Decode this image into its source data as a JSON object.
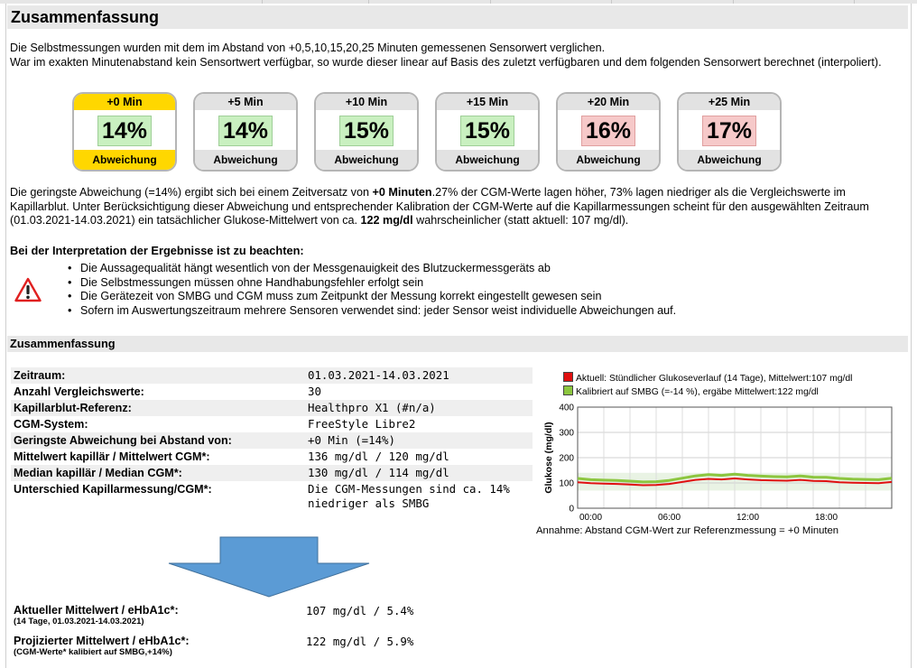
{
  "title": "Zusammenfassung",
  "intro": {
    "line1": "Die Selbstmessungen wurden mit dem im Abstand von +0,5,10,15,20,25 Minuten gemessenen Sensorwert verglichen.",
    "line2": "War im exakten Minutenabstand kein Sensortwert verfügbar, so wurde dieser linear auf Basis des zuletzt verfügbaren und dem folgenden Sensorwert berechnet (interpoliert)."
  },
  "cards": [
    {
      "label": "+0 Min",
      "value": "14%",
      "footer": "Abweichung",
      "selected": true,
      "status": "green"
    },
    {
      "label": "+5 Min",
      "value": "14%",
      "footer": "Abweichung",
      "selected": false,
      "status": "green"
    },
    {
      "label": "+10 Min",
      "value": "15%",
      "footer": "Abweichung",
      "selected": false,
      "status": "green"
    },
    {
      "label": "+15 Min",
      "value": "15%",
      "footer": "Abweichung",
      "selected": false,
      "status": "green"
    },
    {
      "label": "+20 Min",
      "value": "16%",
      "footer": "Abweichung",
      "selected": false,
      "status": "red"
    },
    {
      "label": "+25 Min",
      "value": "17%",
      "footer": "Abweichung",
      "selected": false,
      "status": "red"
    }
  ],
  "result": {
    "part1": "Die geringste Abweichung (=14%) ergibt sich bei einem Zeitversatz von ",
    "offset": "+0 Minuten",
    "part2": ".27% der CGM-Werte lagen höher, 73% lagen niedriger als die Vergleichswerte im Kapillarblut. Unter Berücksichtigung dieser Abweichung und entsprechender Kalibration der CGM-Werte auf die Kapillarmessungen scheint für den ausgewählten Zeitraum (01.03.2021-14.03.2021) ein tatsächlicher Glukose-Mittelwert von ca. ",
    "mean": "122 mg/dl",
    "part3": " wahrscheinlicher (statt aktuell: 107 mg/dl)."
  },
  "interpretation": {
    "title": "Bei der Interpretation der Ergebnisse ist zu beachten:",
    "icon": "warning-icon",
    "items": [
      "Die Aussagequalität hängt wesentlich von der Messgenauigkeit des Blutzuckermessgeräts ab",
      "Die Selbstmessungen müssen ohne Handhabungsfehler erfolgt sein",
      "Die Gerätezeit von SMBG und CGM muss zum Zeitpunkt der Messung korrekt eingestellt gewesen sein",
      "Sofern im Auswertungszeitraum mehrere Sensoren verwendet sind: jeder Sensor weist individuelle Abweichungen auf."
    ]
  },
  "summary": {
    "heading": "Zusammenfassung",
    "rows": [
      {
        "key": "Zeitraum:",
        "value": "01.03.2021-14.03.2021"
      },
      {
        "key": "Anzahl Vergleichswerte:",
        "value": "30"
      },
      {
        "key": "Kapillarblut-Referenz:",
        "value": "Healthpro X1 (#n/a)"
      },
      {
        "key": "CGM-System:",
        "value": "FreeStyle Libre2"
      },
      {
        "key": "Geringste Abweichung bei Abstand von:",
        "value": "+0 Min (=14%)"
      },
      {
        "key": "Mittelwert kapillär / Mittelwert CGM*:",
        "value": "136 mg/dl / 120 mg/dl"
      },
      {
        "key": "Median kapillär / Median CGM*:",
        "value": "130 mg/dl / 114 mg/dl"
      },
      {
        "key": "Unterschied Kapillarmessung/CGM*:",
        "value": "Die CGM-Messungen sind ca. 14% niedriger als SMBG"
      }
    ],
    "current": {
      "key": "Aktueller Mittelwert / eHbA1c*:",
      "sub": "(14 Tage, 01.03.2021-14.03.2021)",
      "value": "107 mg/dl / 5.4%"
    },
    "projected": {
      "key": "Projizierter Mittelwert / eHbA1c*:",
      "sub": "(CGM-Werte* kalibiert auf SMBG,+14%)",
      "value": "122 mg/dl / 5.9%"
    }
  },
  "note": "Annahme: Abstand CGM-Wert zur Referenzmessung = +0 Minuten",
  "colors": {
    "accent": "#ffd700",
    "good": "#c9f0c0",
    "bad": "#f6c9c9",
    "arrow": "#5b9bd5",
    "series_actual": "#e01010",
    "series_calibrated": "#8cc63f"
  },
  "chart_data": {
    "type": "line",
    "ylabel": "Glukose (mg/dl)",
    "ylim": [
      0,
      400
    ],
    "yticks": [
      0,
      100,
      200,
      300,
      400
    ],
    "xticks": [
      "00:00",
      "06:00",
      "12:00",
      "18:00"
    ],
    "xlim_hours": [
      0,
      24
    ],
    "grid": true,
    "legend_position": "top",
    "series": [
      {
        "name": "Aktuell: Stündlicher Glukoseverlauf (14 Tage), Mittelwert:107  mg/dl",
        "color": "#e01010",
        "x": [
          0,
          1,
          2,
          3,
          4,
          5,
          6,
          7,
          8,
          9,
          10,
          11,
          12,
          13,
          14,
          15,
          16,
          17,
          18,
          19,
          20,
          21,
          22,
          23,
          24
        ],
        "values": [
          103,
          99,
          97,
          96,
          94,
          91,
          92,
          96,
          104,
          112,
          116,
          114,
          118,
          114,
          111,
          110,
          109,
          112,
          108,
          107,
          103,
          101,
          100,
          99,
          104
        ]
      },
      {
        "name": "Kalibriert auf SMBG (=-14 %), ergäbe Mittelwert:122  mg/dl",
        "color": "#8cc63f",
        "x": [
          0,
          1,
          2,
          3,
          4,
          5,
          6,
          7,
          8,
          9,
          10,
          11,
          12,
          13,
          14,
          15,
          16,
          17,
          18,
          19,
          20,
          21,
          22,
          23,
          24
        ],
        "values": [
          118,
          113,
          111,
          110,
          107,
          104,
          105,
          110,
          119,
          128,
          133,
          130,
          135,
          130,
          127,
          125,
          124,
          128,
          123,
          122,
          118,
          115,
          114,
          113,
          119
        ]
      }
    ]
  }
}
